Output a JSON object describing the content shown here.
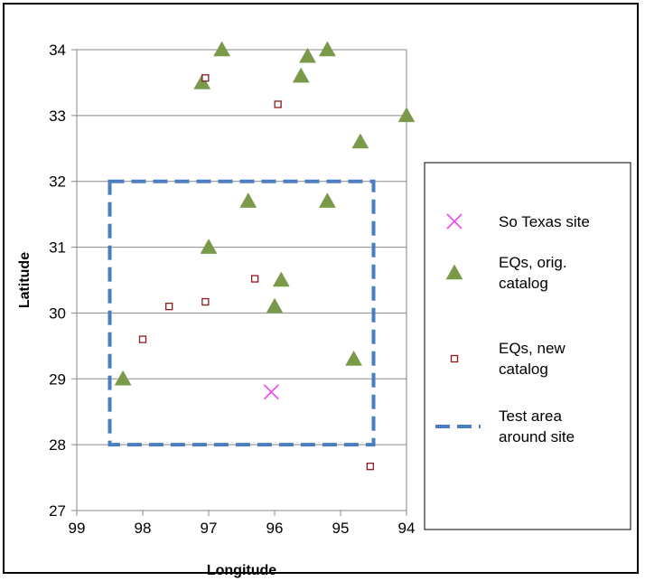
{
  "chart_data": {
    "type": "scatter",
    "title": "",
    "xlabel": "Longitude",
    "ylabel": "Latitude",
    "xlim": [
      99,
      94
    ],
    "ylim": [
      27,
      34
    ],
    "x_reversed": true,
    "xticks": [
      "99",
      "98",
      "97",
      "96",
      "95",
      "94"
    ],
    "yticks": [
      "27",
      "28",
      "29",
      "30",
      "31",
      "32",
      "33",
      "34"
    ],
    "grid": "horizontal",
    "legend_position": "right",
    "site": {
      "name": "So Texas site",
      "color": "#ee44ee",
      "points": [
        {
          "x": 96.05,
          "y": 28.8
        }
      ]
    },
    "orig_catalog": {
      "name": "EQs, orig. catalog",
      "color": "#7a9a4a",
      "points": [
        {
          "x": 97.1,
          "y": 33.5
        },
        {
          "x": 96.8,
          "y": 34.0
        },
        {
          "x": 95.6,
          "y": 33.6
        },
        {
          "x": 95.5,
          "y": 33.9
        },
        {
          "x": 95.2,
          "y": 34.0
        },
        {
          "x": 94.0,
          "y": 33.0
        },
        {
          "x": 94.7,
          "y": 32.6
        },
        {
          "x": 96.4,
          "y": 31.7
        },
        {
          "x": 95.2,
          "y": 31.7
        },
        {
          "x": 97.0,
          "y": 31.0
        },
        {
          "x": 95.9,
          "y": 30.5
        },
        {
          "x": 96.0,
          "y": 30.1
        },
        {
          "x": 94.8,
          "y": 29.3
        },
        {
          "x": 98.3,
          "y": 29.0
        }
      ]
    },
    "new_catalog": {
      "name": "EQs, new catalog",
      "color": "#8b1a1a",
      "points": [
        {
          "x": 97.05,
          "y": 33.57
        },
        {
          "x": 95.95,
          "y": 33.17
        },
        {
          "x": 96.3,
          "y": 30.52
        },
        {
          "x": 97.05,
          "y": 30.17
        },
        {
          "x": 97.6,
          "y": 30.1
        },
        {
          "x": 98.0,
          "y": 29.6
        },
        {
          "x": 94.55,
          "y": 27.67
        }
      ]
    },
    "test_area": {
      "name": "Test area around site",
      "color": "#4a7ec0",
      "x": [
        98.5,
        94.5
      ],
      "y": [
        28,
        32
      ]
    },
    "legend": [
      {
        "key": "site",
        "lines": [
          "So Texas site"
        ]
      },
      {
        "key": "orig_catalog",
        "lines": [
          "EQs, orig.",
          "catalog"
        ]
      },
      {
        "key": "new_catalog",
        "lines": [
          "EQs, new",
          "catalog"
        ]
      },
      {
        "key": "test_area",
        "lines": [
          "Test area",
          "around site"
        ]
      }
    ]
  }
}
